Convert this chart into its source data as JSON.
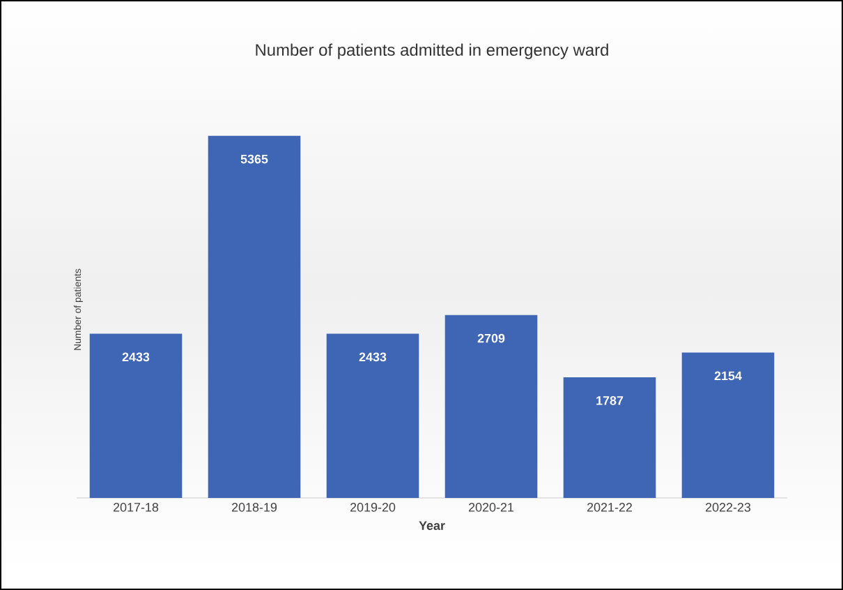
{
  "chart_data": {
    "type": "bar",
    "title": "Number of patients admitted in emergency ward",
    "xlabel": "Year",
    "ylabel": "Number of patients",
    "categories": [
      "2017-18",
      "2018-19",
      "2019-20",
      "2020-21",
      "2021-22",
      "2022-23"
    ],
    "values": [
      2433,
      5365,
      2433,
      2709,
      1787,
      2154
    ],
    "color": "#3f66b5",
    "data_labels": true
  }
}
